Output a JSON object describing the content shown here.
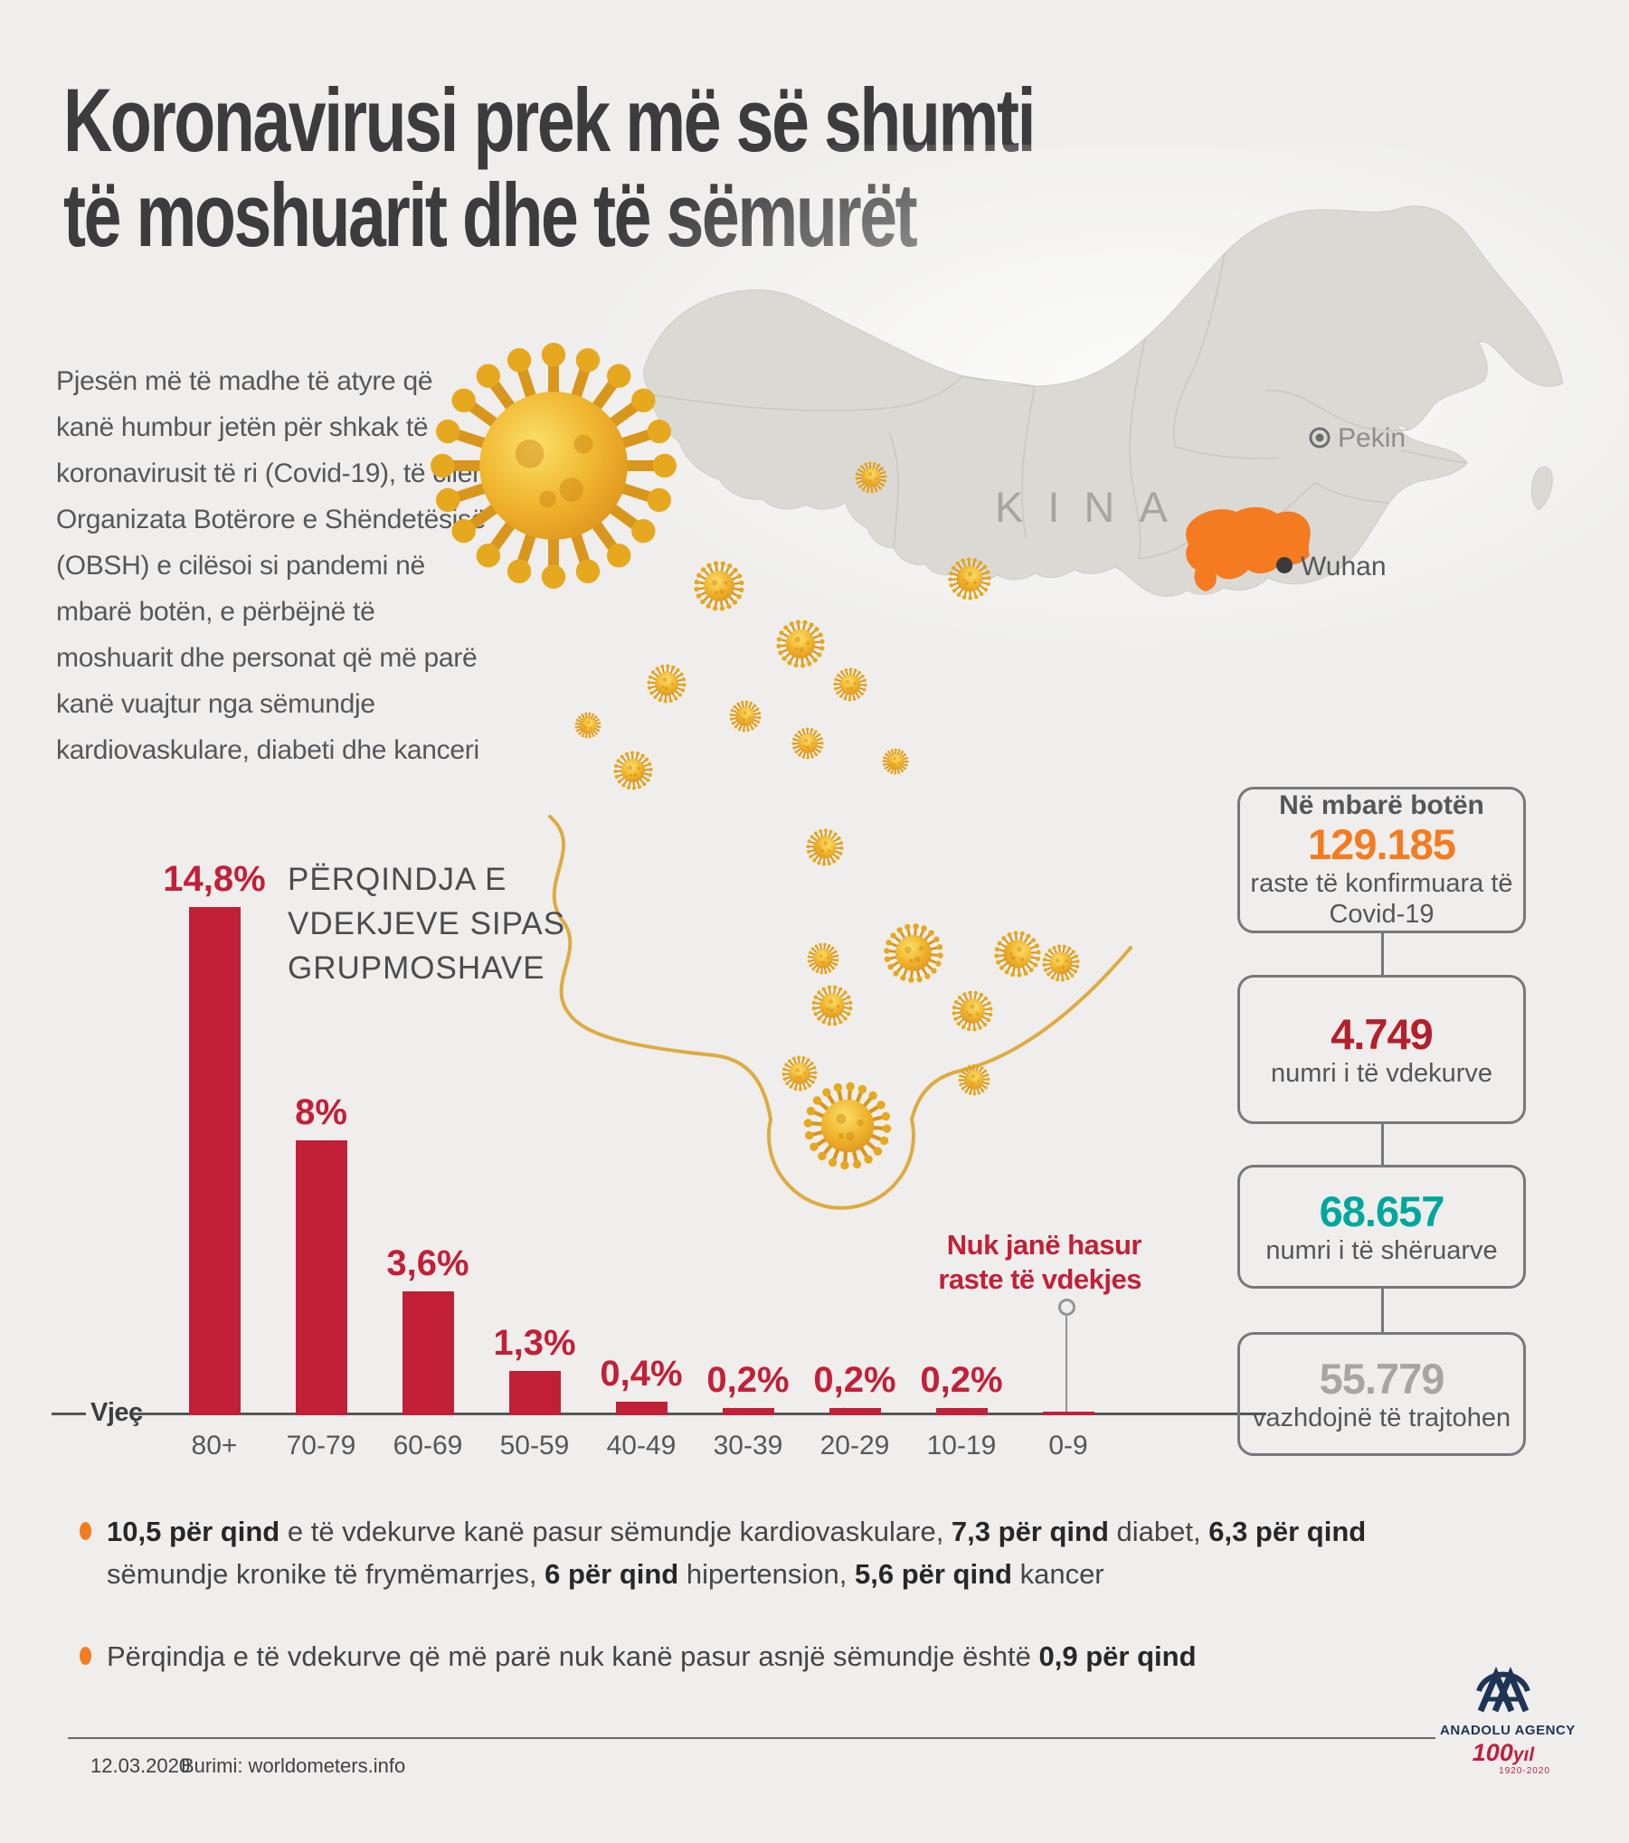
{
  "header": {
    "title_line1": "Koronavirusi prek më së shumti",
    "title_line2": "të moshuarit dhe të sëmurët"
  },
  "intro_lines": [
    "Pjesën më të madhe të atyre që",
    "kanë humbur jetën për shkak të",
    "koronavirusit të ri (Covid-19), të cilën",
    "Organizata Botërore e Shëndetësisë",
    "(OBSH) e cilësoi si pandemi në",
    "mbarë botën, e përbëjnë të",
    "moshuarit dhe personat që më parë",
    "kanë vuajtur nga sëmundje",
    "kardiovaskulare, diabeti dhe kanceri"
  ],
  "map": {
    "country": "KINA",
    "capital": "Pekin",
    "city": "Wuhan",
    "highlight_color": "#f47b20"
  },
  "chart_data": {
    "type": "bar",
    "title": "PËRQINDJA E VDEKJEVE SIPAS GRUPMOSHAVE",
    "title_lines": [
      "PËRQINDJA E",
      "VDEKJEVE SIPAS",
      "GRUPMOSHAVE"
    ],
    "categories": [
      "80+",
      "70-79",
      "60-69",
      "50-59",
      "40-49",
      "30-39",
      "20-29",
      "10-19",
      "0-9"
    ],
    "values": [
      14.8,
      8,
      3.6,
      1.3,
      0.4,
      0.2,
      0.2,
      0.2,
      0
    ],
    "value_labels": [
      "14,8%",
      "8%",
      "3,6%",
      "1,3%",
      "0,4%",
      "0,2%",
      "0,2%",
      "0,2%",
      ""
    ],
    "xlabel": "Vjeç",
    "ylim": [
      0,
      15
    ],
    "grid": false,
    "legend": false,
    "bar_color": "#c22038",
    "annotation_lines": [
      "Nuk janë hasur",
      "raste të vdekjes"
    ],
    "annotation_target": "0-9"
  },
  "stats": {
    "boxes": [
      {
        "title": "Në mbarë botën",
        "value": "129.185",
        "caption_lines": [
          "raste të konfirmuara të",
          "Covid-19"
        ],
        "value_color": "#f47b20"
      },
      {
        "title": "",
        "value": "4.749",
        "caption_lines": [
          "numri i të vdekurve"
        ],
        "value_color": "#b2202c"
      },
      {
        "title": "",
        "value": "68.657",
        "caption_lines": [
          "numri i të shëruarve"
        ],
        "value_color": "#00a79d"
      },
      {
        "title": "",
        "value": "55.779",
        "caption_lines": [
          "vazhdojnë të trajtohen"
        ],
        "value_color": "#a8a6a3"
      }
    ]
  },
  "bullets": [
    {
      "segments": [
        {
          "text": "10,5 për qind",
          "bold": true
        },
        {
          "text": " e të vdekurve kanë pasur sëmundje kardiovaskulare, "
        },
        {
          "text": "7,3 për qind",
          "bold": true
        },
        {
          "text": " diabet, "
        },
        {
          "text": "6,3 për qind",
          "bold": true
        },
        {
          "br": true
        },
        {
          "text": "sëmundje kronike të frymëmarrjes, "
        },
        {
          "text": "6 për qind",
          "bold": true
        },
        {
          "text": " hipertension, "
        },
        {
          "text": "5,6 për qind",
          "bold": true
        },
        {
          "text": " kancer"
        }
      ]
    },
    {
      "segments": [
        {
          "text": "Përqindja e të vdekurve që më parë nuk kanë pasur asnjë sëmundje është "
        },
        {
          "text": "0,9 për qind",
          "bold": true
        }
      ]
    }
  ],
  "footer": {
    "date": "12.03.2020",
    "source": "Burimi: worldometers.info",
    "logo_monogram": "AA",
    "logo_name": "ANADOLU AGENCY",
    "logo_centennial": "100",
    "logo_yil": "yıl",
    "logo_years": "1920-2020"
  },
  "colors": {
    "background": "#efeeec",
    "accent_orange": "#f47b20",
    "bar_red": "#c22038",
    "deaths_red": "#b2202c",
    "recovered_teal": "#00a79d",
    "treated_gray": "#a8a6a3",
    "virus_gold": "#e8a81f",
    "navy_logo": "#1e3456"
  }
}
